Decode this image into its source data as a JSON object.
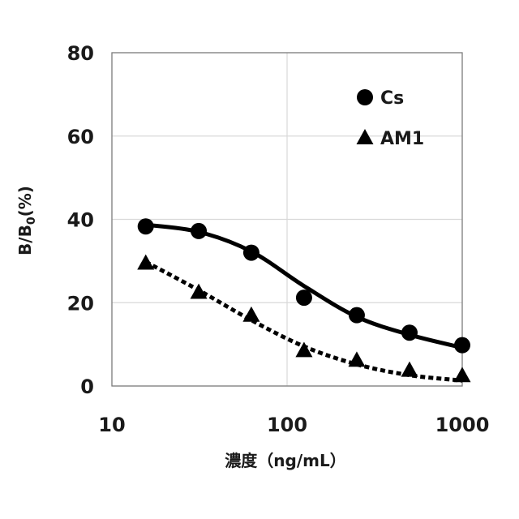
{
  "chart_data": {
    "type": "scatter",
    "x_scale": "log",
    "xlim": [
      10,
      1000
    ],
    "ylim": [
      0,
      80
    ],
    "grid": true,
    "legend_position": "top-right",
    "xlabel": "濃度（ng/mL）",
    "ylabel": {
      "main": "B/B",
      "sub": "0",
      "tail": "(%)"
    },
    "x_ticks": [
      "10",
      "100",
      "1000"
    ],
    "y_ticks": [
      "0",
      "20",
      "40",
      "60",
      "80"
    ],
    "series": [
      {
        "name": "Cs",
        "marker": "circle",
        "line": "solid",
        "color": "#000000",
        "points": [
          {
            "x": 15.6,
            "y": 38.3
          },
          {
            "x": 31.3,
            "y": 37.2
          },
          {
            "x": 62.5,
            "y": 32.0
          },
          {
            "x": 125,
            "y": 21.2
          },
          {
            "x": 250,
            "y": 17.0
          },
          {
            "x": 500,
            "y": 12.8
          },
          {
            "x": 1000,
            "y": 9.8
          }
        ],
        "fit": [
          {
            "x": 15.6,
            "y": 38.7
          },
          {
            "x": 31.3,
            "y": 37.0
          },
          {
            "x": 62.5,
            "y": 32.3
          },
          {
            "x": 125,
            "y": 24.0
          },
          {
            "x": 250,
            "y": 16.6
          },
          {
            "x": 500,
            "y": 12.3
          },
          {
            "x": 1000,
            "y": 9.2
          }
        ]
      },
      {
        "name": "AM1",
        "marker": "triangle",
        "line": "dotted",
        "color": "#000000",
        "points": [
          {
            "x": 15.6,
            "y": 29.5
          },
          {
            "x": 31.3,
            "y": 22.5
          },
          {
            "x": 62.5,
            "y": 17.0
          },
          {
            "x": 125,
            "y": 8.5
          },
          {
            "x": 250,
            "y": 6.2
          },
          {
            "x": 500,
            "y": 3.8
          },
          {
            "x": 1000,
            "y": 2.5
          }
        ],
        "fit": [
          {
            "x": 15.6,
            "y": 29.8
          },
          {
            "x": 31.3,
            "y": 23.0
          },
          {
            "x": 62.5,
            "y": 15.8
          },
          {
            "x": 125,
            "y": 9.5
          },
          {
            "x": 250,
            "y": 5.2
          },
          {
            "x": 500,
            "y": 2.6
          },
          {
            "x": 1000,
            "y": 1.3
          }
        ]
      }
    ]
  }
}
